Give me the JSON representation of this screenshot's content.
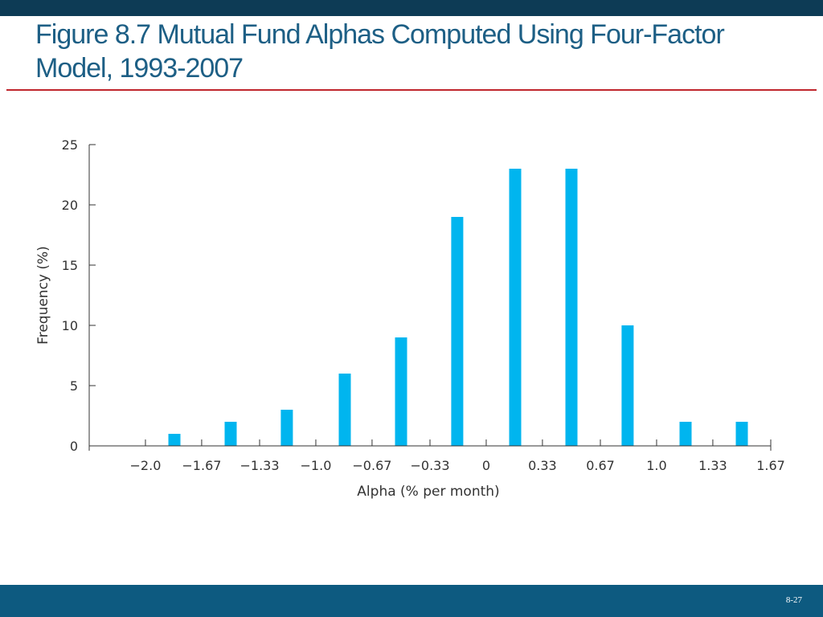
{
  "slide": {
    "title": "Figure 8.7 Mutual Fund Alphas Computed Using Four-Factor Model, 1993-2007",
    "page_number": "8-27"
  },
  "colors": {
    "top_bar": "#0d3b55",
    "title_text": "#1d5f85",
    "title_rule": "#c0262d",
    "bar_fill": "#00b5ef",
    "footer_bar": "#0d5a80"
  },
  "chart_data": {
    "type": "bar",
    "title": "",
    "xlabel": "Alpha (% per month)",
    "ylabel": "Frequency (%)",
    "ylim": [
      0,
      25
    ],
    "y_ticks": [
      "0",
      "5",
      "10",
      "15",
      "20",
      "25"
    ],
    "x_tick_labels": [
      "−2.0",
      "−1.67",
      "−1.33",
      "−1.0",
      "−0.67",
      "−0.33",
      "0",
      "0.33",
      "0.67",
      "1.0",
      "1.33",
      "1.67"
    ],
    "x_tick_values": [
      -2.0,
      -1.67,
      -1.33,
      -1.0,
      -0.67,
      -0.33,
      0,
      0.33,
      0.67,
      1.0,
      1.33,
      1.67
    ],
    "xlim": [
      -2.33,
      1.67
    ],
    "x": [
      -1.83,
      -1.5,
      -1.17,
      -0.83,
      -0.5,
      -0.17,
      0.17,
      0.5,
      0.83,
      1.17,
      1.5
    ],
    "values": [
      1,
      2,
      3,
      6,
      9,
      19,
      23,
      23,
      10,
      2,
      2
    ],
    "grid": false,
    "legend": "none"
  }
}
